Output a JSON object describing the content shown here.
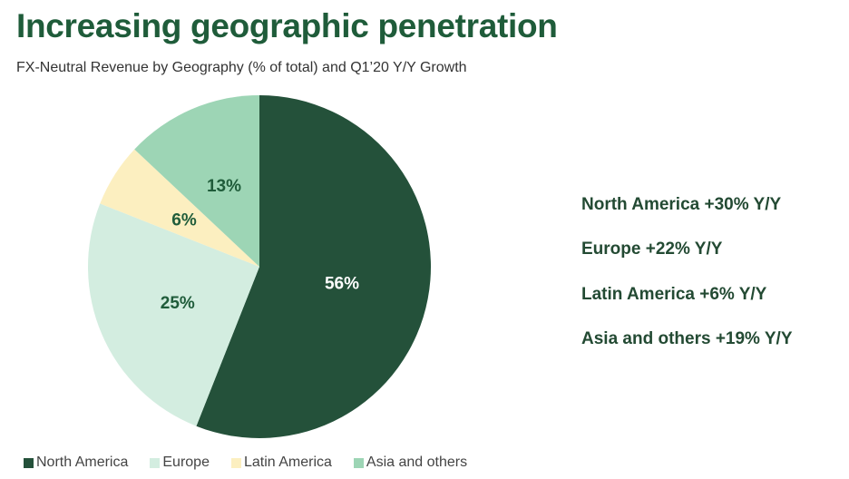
{
  "title": "Increasing geographic penetration",
  "subtitle": "FX-Neutral Revenue by Geography (% of total) and Q1’20 Y/Y Growth",
  "growth": [
    "North America +30% Y/Y",
    "Europe +22% Y/Y",
    "Latin America +6% Y/Y",
    "Asia and others +19% Y/Y"
  ],
  "chart_data": {
    "type": "pie",
    "categories": [
      "North America",
      "Europe",
      "Latin America",
      "Asia and others"
    ],
    "values": [
      56,
      25,
      6,
      13
    ],
    "labels": [
      "56%",
      "25%",
      "6%",
      "13%"
    ],
    "colors": [
      "#24513a",
      "#d3ede0",
      "#fcefc0",
      "#9dd5b5"
    ],
    "label_colors": [
      "#ffffff",
      "#1f5c3a",
      "#1f5c3a",
      "#1f5c3a"
    ],
    "legend": "bottom",
    "start": "12 o'clock, clockwise"
  }
}
